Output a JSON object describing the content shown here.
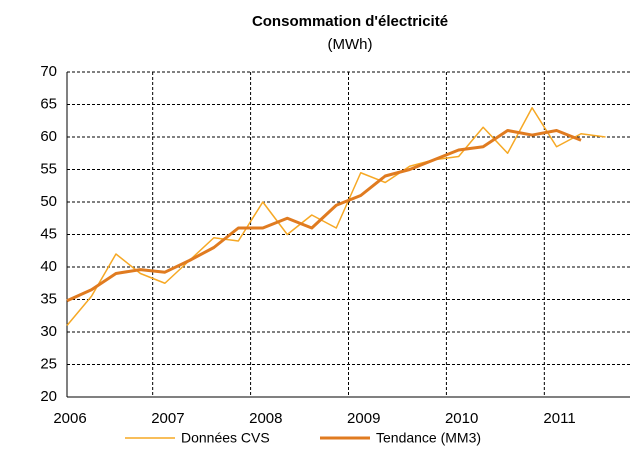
{
  "chart_data": {
    "type": "line",
    "title": "Consommation d'électricité",
    "subtitle": "(MWh)",
    "categories": [
      "2006",
      null,
      null,
      null,
      "2007",
      null,
      null,
      null,
      "2008",
      null,
      null,
      null,
      "2009",
      null,
      null,
      null,
      "2010",
      null,
      null,
      null,
      "2011",
      null,
      null
    ],
    "series": [
      {
        "name": "Données CVS",
        "color": "#f6a824",
        "width": 1.5,
        "values": [
          31,
          35.5,
          42,
          39,
          37.5,
          41,
          44.5,
          44,
          50,
          45,
          48,
          46,
          54.5,
          53,
          55.5,
          56.5,
          57,
          61.5,
          57.5,
          64.5,
          58.5,
          60.5,
          60
        ]
      },
      {
        "name": "Tendance (MM3)",
        "color": "#e07b20",
        "width": 3,
        "values": [
          34.8,
          36.5,
          39,
          39.6,
          39.2,
          41,
          43,
          46,
          46,
          47.5,
          46,
          49.5,
          51,
          54,
          55,
          56.5,
          58,
          58.5,
          61,
          60.3,
          61,
          59.5,
          null
        ]
      }
    ],
    "ylim": [
      20,
      70
    ],
    "yticks": [
      20,
      25,
      30,
      35,
      40,
      45,
      50,
      55,
      60,
      65,
      70
    ],
    "grid": true
  }
}
